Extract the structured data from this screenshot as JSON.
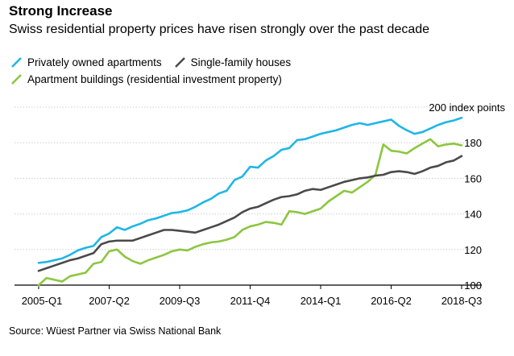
{
  "header": {
    "title": "Strong Increase",
    "subtitle": "Swiss residential property prices have risen strongly over the past decade"
  },
  "legend": {
    "row1": [
      {
        "label": "Privately owned apartments",
        "color": "#1fb6e6"
      },
      {
        "label": "Single-family houses",
        "color": "#4a4a4a"
      }
    ],
    "row2": [
      {
        "label": "Apartment buildings (residential investment property)",
        "color": "#8cc63f"
      }
    ]
  },
  "footer": {
    "source": "Source: Wüest Partner via Swiss National Bank"
  },
  "chart_data": {
    "type": "line",
    "title": "Strong Increase",
    "subtitle": "Swiss residential property prices have risen strongly over the past decade",
    "annotation": "200 index points",
    "xlabel": "",
    "ylabel": "",
    "x_tick_labels": [
      "2005-Q1",
      "2007-Q2",
      "2009-Q3",
      "2011-Q4",
      "2014-Q1",
      "2016-Q2",
      "2018-Q3"
    ],
    "x_tick_quarters": [
      0,
      9,
      18,
      27,
      36,
      45,
      54
    ],
    "y_ticks": [
      100,
      120,
      140,
      160,
      180
    ],
    "ylim": [
      100,
      200
    ],
    "xlim": [
      0,
      54
    ],
    "grid": "horizontal",
    "legend_position": "top-left",
    "series": [
      {
        "name": "Privately owned apartments",
        "color": "#1fb6e6",
        "values": [
          112.5,
          113,
          114,
          115,
          117,
          119.5,
          121,
          122,
          127,
          129,
          132.5,
          131,
          133,
          134.5,
          136.5,
          137.5,
          139,
          140.5,
          141,
          142,
          144,
          146.5,
          148.5,
          151.5,
          153,
          159,
          161,
          166.5,
          166,
          170,
          172.5,
          176,
          177,
          181.5,
          182,
          183.5,
          185,
          186,
          187,
          188.5,
          190,
          191,
          190,
          191,
          192,
          193,
          189.5,
          187,
          185,
          186,
          188,
          190,
          191.5,
          192.5,
          194
        ]
      },
      {
        "name": "Single-family houses",
        "color": "#4a4a4a",
        "values": [
          108,
          109.5,
          111,
          112.5,
          114,
          115,
          116.5,
          118,
          123,
          124.5,
          125,
          125,
          125,
          126.5,
          128,
          129.5,
          131,
          131,
          130.5,
          130,
          129.5,
          131,
          132.5,
          134,
          136,
          138,
          141,
          143,
          144,
          146,
          148,
          149.5,
          150,
          151,
          153,
          154,
          153.5,
          155,
          156.5,
          158,
          159,
          160,
          160.5,
          161.5,
          162,
          163.5,
          164,
          163.5,
          162.5,
          164,
          166,
          167,
          169,
          170,
          172.5
        ]
      },
      {
        "name": "Apartment buildings (residential investment property)",
        "color": "#8cc63f",
        "values": [
          100,
          104,
          103,
          102,
          105,
          106,
          107,
          112,
          113,
          119,
          120,
          116,
          113.5,
          112,
          114,
          115.5,
          117,
          119,
          120,
          119.5,
          121.5,
          123,
          124,
          124.5,
          125.5,
          127,
          131,
          133,
          134,
          135.5,
          135,
          134,
          141.5,
          141,
          140,
          141.5,
          143,
          147,
          150,
          153,
          152,
          155,
          158,
          162,
          179,
          175.5,
          175,
          174,
          177,
          179.5,
          182,
          178,
          179,
          179.5,
          178.5
        ]
      }
    ]
  }
}
